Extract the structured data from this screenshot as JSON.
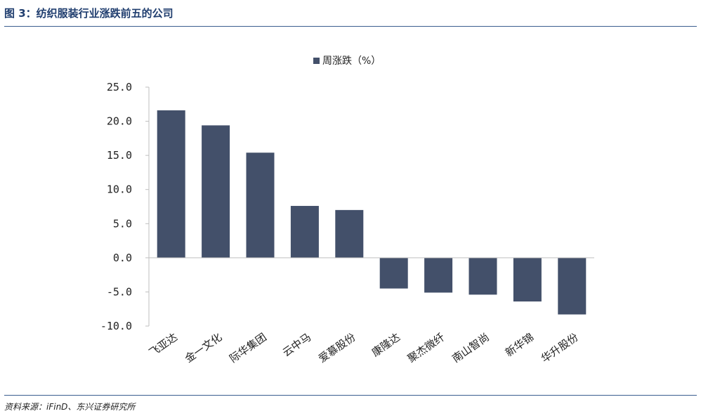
{
  "header": {
    "title": "图 3：纺织服装行业涨跌前五的公司"
  },
  "footer": {
    "source": "资料来源：iFinD、东兴证券研究所"
  },
  "colors": {
    "bar": "#43506a",
    "rule": "#3a5d8f",
    "title": "#1f3d6e"
  },
  "chart_data": {
    "type": "bar",
    "title": "",
    "xlabel": "",
    "ylabel": "",
    "categories": [
      "飞亚达",
      "金一文化",
      "际华集团",
      "云中马",
      "爱慕股份",
      "康隆达",
      "聚杰微纤",
      "南山智尚",
      "新华锦",
      "华升股份"
    ],
    "series": [
      {
        "name": "周涨跌（%）",
        "values": [
          21.6,
          19.4,
          15.4,
          7.6,
          7.0,
          -4.5,
          -5.1,
          -5.4,
          -6.4,
          -8.3
        ]
      }
    ],
    "ylim": [
      -10,
      25
    ],
    "yticks": [
      25,
      20,
      15,
      10,
      5,
      0,
      -5,
      -10
    ],
    "ytick_labels": [
      "25.0",
      "20.0",
      "15.0",
      "10.0",
      "5.0",
      "0.0",
      "-5.0",
      "-10.0"
    ],
    "grid": false,
    "legend": "top-center"
  }
}
